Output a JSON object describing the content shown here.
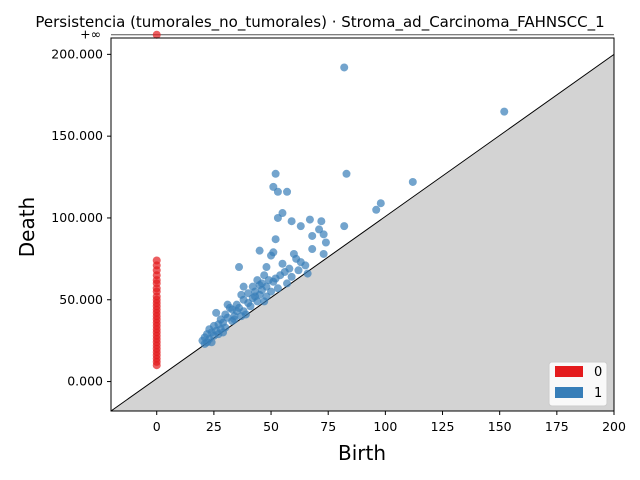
{
  "chart_data": {
    "type": "scatter",
    "title": "Persistencia (tumorales_no_tumorales) · Stroma_ad_Carcinoma_FAHNSCC_1",
    "xlabel": "Birth",
    "ylabel": "Death",
    "xlim": [
      -20,
      200
    ],
    "ylim": [
      -18000,
      210000
    ],
    "x_ticks": [
      0,
      25,
      50,
      75,
      100,
      125,
      150,
      175,
      200
    ],
    "y_ticks": [
      {
        "value": 0,
        "label": "0.000"
      },
      {
        "value": 50000,
        "label": "50.000"
      },
      {
        "value": 100000,
        "label": "100.000"
      },
      {
        "value": 150000,
        "label": "150.000"
      },
      {
        "value": 200000,
        "label": "200.000"
      }
    ],
    "infinity_level": 212000,
    "infinity_label": "+∞",
    "diagonal": true,
    "legend_position": "lower-right",
    "series": [
      {
        "name": "0",
        "color": "#e41a1c",
        "points": [
          [
            0,
            212000
          ],
          [
            0,
            74000
          ],
          [
            0,
            71000
          ],
          [
            0,
            68000
          ],
          [
            0,
            65000
          ],
          [
            0,
            62000
          ],
          [
            0,
            60000
          ],
          [
            0,
            57000
          ],
          [
            0,
            55000
          ],
          [
            0,
            52000
          ],
          [
            0,
            50000
          ],
          [
            0,
            48000
          ],
          [
            0,
            46000
          ],
          [
            0,
            44000
          ],
          [
            0,
            42000
          ],
          [
            0,
            40000
          ],
          [
            0,
            38000
          ],
          [
            0,
            36000
          ],
          [
            0,
            34000
          ],
          [
            0,
            32000
          ],
          [
            0,
            30000
          ],
          [
            0,
            28000
          ],
          [
            0,
            26000
          ],
          [
            0,
            24000
          ],
          [
            0,
            22000
          ],
          [
            0,
            20000
          ],
          [
            0,
            18000
          ],
          [
            0,
            16000
          ],
          [
            0,
            14000
          ],
          [
            0,
            12000
          ],
          [
            0,
            10000
          ]
        ]
      },
      {
        "name": "1",
        "color": "#377eb8",
        "points": [
          [
            82,
            192000
          ],
          [
            152,
            165000
          ],
          [
            52,
            127000
          ],
          [
            83,
            127000
          ],
          [
            112,
            122000
          ],
          [
            51,
            119000
          ],
          [
            53,
            116000
          ],
          [
            57,
            116000
          ],
          [
            98,
            109000
          ],
          [
            96,
            105000
          ],
          [
            55,
            103000
          ],
          [
            53,
            100000
          ],
          [
            59,
            98000
          ],
          [
            67,
            99000
          ],
          [
            72,
            98000
          ],
          [
            63,
            95000
          ],
          [
            82,
            95000
          ],
          [
            71,
            93000
          ],
          [
            73,
            90000
          ],
          [
            68,
            89000
          ],
          [
            52,
            87000
          ],
          [
            74,
            85000
          ],
          [
            68,
            81000
          ],
          [
            45,
            80000
          ],
          [
            51,
            79000
          ],
          [
            60,
            78000
          ],
          [
            73,
            78000
          ],
          [
            50,
            77000
          ],
          [
            61,
            75000
          ],
          [
            63,
            73000
          ],
          [
            55,
            72000
          ],
          [
            65,
            71000
          ],
          [
            48,
            70000
          ],
          [
            58,
            69000
          ],
          [
            36,
            70000
          ],
          [
            62,
            68000
          ],
          [
            66,
            66000
          ],
          [
            56,
            67000
          ],
          [
            54,
            65000
          ],
          [
            47,
            65000
          ],
          [
            59,
            64000
          ],
          [
            52,
            63000
          ],
          [
            49,
            62000
          ],
          [
            44,
            62000
          ],
          [
            51,
            61000
          ],
          [
            57,
            60000
          ],
          [
            45,
            59000
          ],
          [
            42,
            58000
          ],
          [
            38,
            58000
          ],
          [
            48,
            58000
          ],
          [
            53,
            57000
          ],
          [
            46,
            56000
          ],
          [
            43,
            55000
          ],
          [
            50,
            55000
          ],
          [
            40,
            54000
          ],
          [
            37,
            53000
          ],
          [
            45,
            53000
          ],
          [
            48,
            52000
          ],
          [
            42,
            51000
          ],
          [
            38,
            50000
          ],
          [
            44,
            49000
          ],
          [
            40,
            48000
          ],
          [
            35,
            47000
          ],
          [
            31,
            47000
          ],
          [
            41,
            46000
          ],
          [
            36,
            45000
          ],
          [
            33,
            44000
          ],
          [
            38,
            43000
          ],
          [
            26,
            42000
          ],
          [
            30,
            41000
          ],
          [
            34,
            40000
          ],
          [
            37,
            40000
          ],
          [
            31,
            39000
          ],
          [
            28,
            38000
          ],
          [
            33,
            37000
          ],
          [
            29,
            36000
          ],
          [
            27,
            35000
          ],
          [
            25,
            34000
          ],
          [
            30,
            33000
          ],
          [
            23,
            32000
          ],
          [
            28,
            32000
          ],
          [
            26,
            31000
          ],
          [
            24,
            30000
          ],
          [
            29,
            30000
          ],
          [
            22,
            29000
          ],
          [
            27,
            29000
          ],
          [
            25,
            28000
          ],
          [
            21,
            27000
          ],
          [
            23,
            26000
          ],
          [
            20,
            25000
          ],
          [
            22,
            24000
          ],
          [
            24,
            24000
          ],
          [
            21,
            23000
          ],
          [
            34,
            38000
          ],
          [
            39,
            41000
          ],
          [
            47,
            49000
          ],
          [
            35,
            43000
          ],
          [
            32,
            45000
          ],
          [
            43,
            52000
          ],
          [
            46,
            60000
          ]
        ]
      }
    ]
  }
}
